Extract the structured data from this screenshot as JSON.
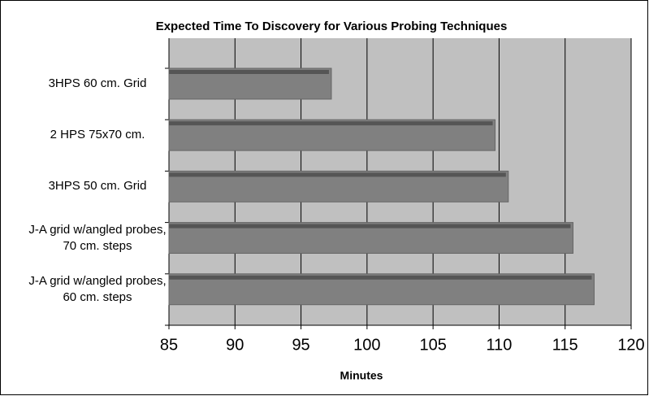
{
  "chart_data": {
    "type": "bar",
    "orientation": "horizontal",
    "title": "Expected Time To Discovery for Various Probing Techniques",
    "x_label": "Minutes",
    "categories": [
      "3HPS 60 cm. Grid",
      "2 HPS 75x70 cm.",
      "3HPS 50 cm. Grid",
      "J-A grid w/angled probes, 70 cm. steps",
      "J-A grid w/angled probes, 60 cm. steps"
    ],
    "values": [
      97.3,
      109.7,
      110.7,
      115.6,
      117.2
    ],
    "color": "#808080",
    "xlim": [
      85,
      120
    ],
    "xticks": [
      85,
      90,
      95,
      100,
      105,
      110,
      115,
      120
    ],
    "grid": true
  }
}
